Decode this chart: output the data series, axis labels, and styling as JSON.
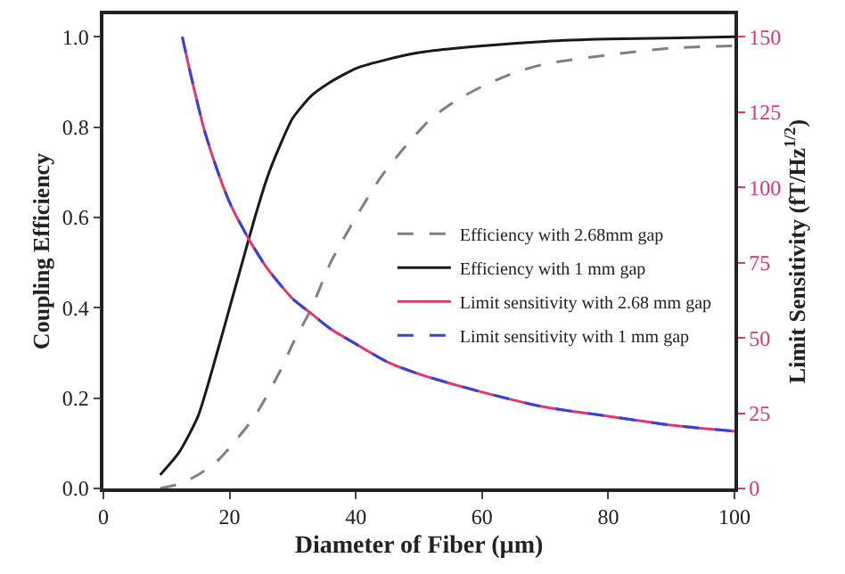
{
  "chart_data": {
    "type": "line",
    "xlabel": "Diameter of Fiber (µm)",
    "ylabel": "Coupling Efficiency",
    "y2label": "Limit Sensitivity (fT/Hz$^{1/2}$)",
    "xlim": [
      0,
      100
    ],
    "xticks": [
      0,
      20,
      40,
      60,
      80,
      100
    ],
    "ylim": [
      0,
      1.05
    ],
    "yticks": [
      {
        "value": 0,
        "label": "0.0"
      },
      {
        "value": 0.2,
        "label": "0.2"
      },
      {
        "value": 0.4,
        "label": "0.4"
      },
      {
        "value": 0.6,
        "label": "0.6"
      },
      {
        "value": 0.8,
        "label": "0.8"
      },
      {
        "value": 1,
        "label": "1.0"
      }
    ],
    "y2lim": [
      0,
      157.5
    ],
    "y2ticks": [
      0,
      25,
      50,
      75,
      100,
      125,
      150
    ],
    "grid": false,
    "legend": "right",
    "marker": "none",
    "series": [
      {
        "name": "Efficiency with 2.68mm gap",
        "color": "#808080",
        "line_style": "dashed",
        "x": [
          9,
          12,
          15,
          18,
          20,
          24,
          28,
          30,
          33,
          36,
          40,
          44,
          48,
          52,
          56,
          60,
          65,
          70,
          80,
          90,
          100
        ],
        "values": [
          0.0,
          0.01,
          0.03,
          0.06,
          0.09,
          0.16,
          0.26,
          0.32,
          0.4,
          0.5,
          0.6,
          0.69,
          0.76,
          0.82,
          0.86,
          0.89,
          0.92,
          0.94,
          0.96,
          0.975,
          0.98
        ]
      },
      {
        "name": "Efficiency with 1 mm gap",
        "color": "#1a1a1a",
        "line_style": "solid",
        "x": [
          9,
          12,
          15,
          18,
          20,
          22,
          24,
          26,
          28,
          30,
          33,
          36,
          40,
          45,
          50,
          60,
          70,
          80,
          100
        ],
        "values": [
          0.03,
          0.08,
          0.16,
          0.3,
          0.4,
          0.5,
          0.6,
          0.69,
          0.76,
          0.82,
          0.87,
          0.9,
          0.93,
          0.95,
          0.965,
          0.98,
          0.99,
          0.995,
          1.0
        ]
      },
      {
        "name": "Limit sensitivity with 2.68 mm gap",
        "color": "#e8336e",
        "line_style": "solid",
        "axis": "y2",
        "x": [
          12.5,
          14,
          16,
          18,
          20,
          23,
          26,
          30,
          33,
          36,
          40,
          45,
          50,
          60,
          70,
          80,
          90,
          100
        ],
        "values": [
          150,
          136,
          119,
          106,
          95,
          83,
          73,
          63,
          58,
          53,
          48,
          42,
          38,
          32,
          27,
          24,
          21,
          19
        ]
      },
      {
        "name": "Limit sensitivity with 1 mm gap",
        "color": "#3344dd",
        "line_style": "dashed",
        "axis": "y2",
        "x": [
          12.5,
          14,
          16,
          18,
          20,
          23,
          26,
          30,
          33,
          36,
          40,
          45,
          50,
          60,
          70,
          80,
          90,
          100
        ],
        "values": [
          150,
          136,
          119,
          106,
          95,
          83,
          73,
          63,
          58,
          53,
          48,
          42,
          38,
          32,
          27,
          24,
          21,
          19
        ]
      }
    ]
  }
}
